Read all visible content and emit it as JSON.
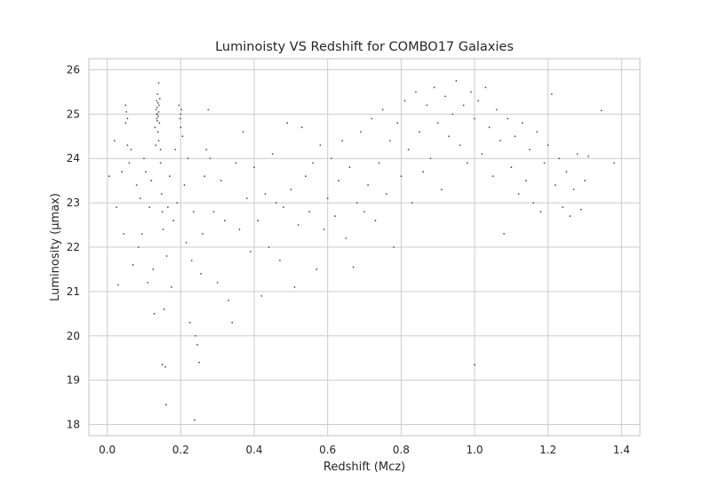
{
  "chart_data": {
    "type": "scatter",
    "title": "Luminoisty VS Redshift for COMBO17 Galaxies",
    "xlabel": "Redshift (Mcz)",
    "ylabel": "Luminosity (μmax)",
    "xlim": [
      -0.05,
      1.45
    ],
    "ylim": [
      17.75,
      26.25
    ],
    "xticks": [
      0.0,
      0.2,
      0.4,
      0.6,
      0.8,
      1.0,
      1.2,
      1.4
    ],
    "xtick_labels": [
      "0.0",
      "0.2",
      "0.4",
      "0.6",
      "0.8",
      "1.0",
      "1.2",
      "1.4"
    ],
    "yticks": [
      18,
      19,
      20,
      21,
      22,
      23,
      24,
      25,
      26
    ],
    "ytick_labels": [
      "18",
      "19",
      "20",
      "21",
      "22",
      "23",
      "24",
      "25",
      "26"
    ],
    "grid": true,
    "marker_color": "#4d4d4d",
    "series": [
      {
        "points": [
          [
            0.005,
            23.6
          ],
          [
            0.02,
            24.4
          ],
          [
            0.025,
            22.9
          ],
          [
            0.03,
            21.15
          ],
          [
            0.04,
            23.7
          ],
          [
            0.045,
            22.3
          ],
          [
            0.05,
            24.8
          ],
          [
            0.05,
            25.2
          ],
          [
            0.052,
            25.05
          ],
          [
            0.055,
            24.9
          ],
          [
            0.055,
            24.3
          ],
          [
            0.06,
            23.9
          ],
          [
            0.065,
            24.2
          ],
          [
            0.07,
            21.6
          ],
          [
            0.08,
            23.4
          ],
          [
            0.085,
            22.0
          ],
          [
            0.09,
            23.1
          ],
          [
            0.095,
            22.3
          ],
          [
            0.1,
            24.0
          ],
          [
            0.105,
            23.7
          ],
          [
            0.11,
            21.2
          ],
          [
            0.115,
            22.9
          ],
          [
            0.12,
            23.5
          ],
          [
            0.125,
            21.5
          ],
          [
            0.128,
            20.5
          ],
          [
            0.13,
            24.7
          ],
          [
            0.132,
            24.3
          ],
          [
            0.133,
            25.1
          ],
          [
            0.134,
            25.0
          ],
          [
            0.135,
            24.9
          ],
          [
            0.135,
            25.3
          ],
          [
            0.136,
            25.15
          ],
          [
            0.136,
            24.85
          ],
          [
            0.137,
            25.45
          ],
          [
            0.137,
            25.0
          ],
          [
            0.138,
            24.6
          ],
          [
            0.138,
            25.25
          ],
          [
            0.139,
            24.95
          ],
          [
            0.14,
            25.05
          ],
          [
            0.14,
            24.4
          ],
          [
            0.14,
            25.7
          ],
          [
            0.141,
            25.2
          ],
          [
            0.142,
            24.8
          ],
          [
            0.143,
            25.35
          ],
          [
            0.145,
            23.9
          ],
          [
            0.145,
            24.2
          ],
          [
            0.148,
            23.2
          ],
          [
            0.15,
            22.8
          ],
          [
            0.15,
            19.35
          ],
          [
            0.152,
            22.4
          ],
          [
            0.155,
            20.6
          ],
          [
            0.158,
            19.3
          ],
          [
            0.16,
            18.45
          ],
          [
            0.162,
            21.8
          ],
          [
            0.165,
            22.9
          ],
          [
            0.17,
            23.6
          ],
          [
            0.175,
            21.1
          ],
          [
            0.18,
            22.6
          ],
          [
            0.185,
            24.2
          ],
          [
            0.19,
            23.0
          ],
          [
            0.195,
            25.2
          ],
          [
            0.198,
            24.9
          ],
          [
            0.2,
            25.0
          ],
          [
            0.2,
            24.7
          ],
          [
            0.202,
            25.1
          ],
          [
            0.205,
            24.5
          ],
          [
            0.21,
            23.4
          ],
          [
            0.215,
            22.1
          ],
          [
            0.22,
            24.0
          ],
          [
            0.225,
            20.3
          ],
          [
            0.23,
            21.7
          ],
          [
            0.235,
            22.8
          ],
          [
            0.238,
            18.1
          ],
          [
            0.24,
            20.0
          ],
          [
            0.245,
            19.8
          ],
          [
            0.25,
            19.4
          ],
          [
            0.255,
            21.4
          ],
          [
            0.26,
            22.3
          ],
          [
            0.265,
            23.6
          ],
          [
            0.27,
            24.2
          ],
          [
            0.275,
            25.1
          ],
          [
            0.28,
            24.0
          ],
          [
            0.29,
            22.8
          ],
          [
            0.3,
            21.2
          ],
          [
            0.31,
            23.5
          ],
          [
            0.32,
            22.6
          ],
          [
            0.33,
            20.8
          ],
          [
            0.34,
            20.3
          ],
          [
            0.35,
            23.9
          ],
          [
            0.36,
            22.4
          ],
          [
            0.37,
            24.6
          ],
          [
            0.38,
            23.1
          ],
          [
            0.39,
            21.9
          ],
          [
            0.4,
            23.8
          ],
          [
            0.41,
            22.6
          ],
          [
            0.42,
            20.9
          ],
          [
            0.43,
            23.2
          ],
          [
            0.44,
            22.0
          ],
          [
            0.45,
            24.1
          ],
          [
            0.46,
            23.0
          ],
          [
            0.47,
            21.7
          ],
          [
            0.48,
            22.9
          ],
          [
            0.49,
            24.8
          ],
          [
            0.5,
            23.3
          ],
          [
            0.51,
            21.1
          ],
          [
            0.52,
            22.5
          ],
          [
            0.53,
            24.7
          ],
          [
            0.54,
            23.6
          ],
          [
            0.55,
            22.8
          ],
          [
            0.56,
            23.9
          ],
          [
            0.57,
            21.5
          ],
          [
            0.58,
            24.3
          ],
          [
            0.59,
            22.4
          ],
          [
            0.6,
            23.1
          ],
          [
            0.61,
            24.0
          ],
          [
            0.62,
            22.7
          ],
          [
            0.63,
            23.5
          ],
          [
            0.64,
            24.4
          ],
          [
            0.65,
            22.2
          ],
          [
            0.66,
            23.8
          ],
          [
            0.67,
            21.55
          ],
          [
            0.68,
            23.0
          ],
          [
            0.69,
            24.6
          ],
          [
            0.7,
            22.8
          ],
          [
            0.71,
            23.4
          ],
          [
            0.72,
            24.9
          ],
          [
            0.73,
            22.6
          ],
          [
            0.74,
            23.9
          ],
          [
            0.75,
            25.1
          ],
          [
            0.76,
            23.2
          ],
          [
            0.77,
            24.4
          ],
          [
            0.78,
            22.0
          ],
          [
            0.79,
            24.8
          ],
          [
            0.8,
            23.6
          ],
          [
            0.81,
            25.3
          ],
          [
            0.82,
            24.2
          ],
          [
            0.83,
            23.0
          ],
          [
            0.84,
            25.5
          ],
          [
            0.85,
            24.6
          ],
          [
            0.86,
            23.7
          ],
          [
            0.87,
            25.2
          ],
          [
            0.88,
            24.0
          ],
          [
            0.89,
            25.6
          ],
          [
            0.9,
            24.8
          ],
          [
            0.91,
            23.3
          ],
          [
            0.92,
            25.4
          ],
          [
            0.93,
            24.5
          ],
          [
            0.94,
            25.0
          ],
          [
            0.95,
            25.75
          ],
          [
            0.96,
            24.3
          ],
          [
            0.97,
            25.2
          ],
          [
            0.98,
            23.9
          ],
          [
            0.99,
            25.5
          ],
          [
            1.0,
            19.35
          ],
          [
            1.0,
            24.9
          ],
          [
            1.01,
            25.3
          ],
          [
            1.02,
            24.1
          ],
          [
            1.03,
            25.6
          ],
          [
            1.04,
            24.7
          ],
          [
            1.05,
            23.6
          ],
          [
            1.06,
            25.1
          ],
          [
            1.07,
            24.4
          ],
          [
            1.08,
            22.3
          ],
          [
            1.09,
            24.9
          ],
          [
            1.1,
            23.8
          ],
          [
            1.11,
            24.5
          ],
          [
            1.12,
            23.2
          ],
          [
            1.13,
            24.8
          ],
          [
            1.14,
            23.5
          ],
          [
            1.15,
            24.2
          ],
          [
            1.16,
            23.0
          ],
          [
            1.17,
            24.6
          ],
          [
            1.18,
            22.8
          ],
          [
            1.19,
            23.9
          ],
          [
            1.2,
            24.3
          ],
          [
            1.21,
            25.45
          ],
          [
            1.22,
            23.4
          ],
          [
            1.23,
            24.0
          ],
          [
            1.24,
            22.9
          ],
          [
            1.25,
            23.7
          ],
          [
            1.26,
            22.7
          ],
          [
            1.27,
            23.3
          ],
          [
            1.28,
            24.1
          ],
          [
            1.29,
            22.85
          ],
          [
            1.3,
            23.5
          ],
          [
            1.31,
            24.05
          ],
          [
            1.345,
            25.08
          ],
          [
            1.38,
            23.9
          ]
        ]
      }
    ]
  }
}
